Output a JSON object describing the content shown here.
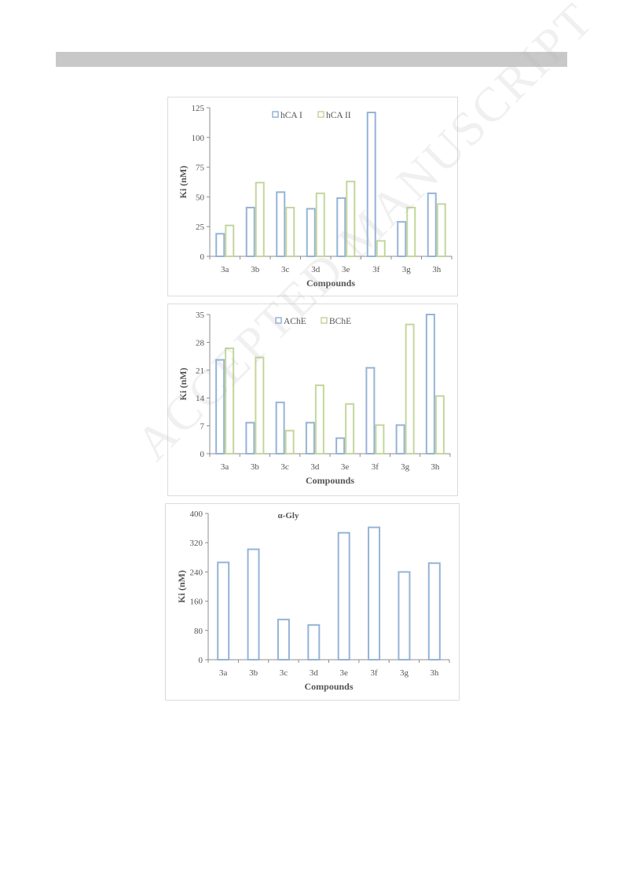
{
  "watermark": "ACCEPTED MANUSCRIPT",
  "colors": {
    "series1": "#95b3d7",
    "series2": "#c3d69b",
    "axis": "#8c8c8c",
    "text": "#555555"
  },
  "chart_data": [
    {
      "type": "bar",
      "categories": [
        "3a",
        "3b",
        "3c",
        "3d",
        "3e",
        "3f",
        "3g",
        "3h"
      ],
      "series": [
        {
          "name": "hCA I",
          "values": [
            19,
            41,
            54,
            40,
            49,
            121,
            29,
            53
          ]
        },
        {
          "name": "hCA II",
          "values": [
            26,
            62,
            41,
            53,
            63,
            13,
            41,
            44
          ]
        }
      ],
      "title": "",
      "xlabel": "Compounds",
      "ylabel": "Ki (nM)",
      "ylim": [
        0,
        125
      ],
      "yticks": [
        "0",
        "25",
        "50",
        "75",
        "100",
        "125"
      ],
      "legend": "top-center",
      "grid": false
    },
    {
      "type": "bar",
      "categories": [
        "3a",
        "3b",
        "3c",
        "3d",
        "3e",
        "3f",
        "3g",
        "3h"
      ],
      "series": [
        {
          "name": "AChE",
          "values": [
            23.6,
            7.8,
            12.9,
            7.8,
            3.9,
            21.6,
            7.2,
            35
          ]
        },
        {
          "name": "BChE",
          "values": [
            26.5,
            24.2,
            5.8,
            17.2,
            12.5,
            7.2,
            32.5,
            14.5
          ]
        }
      ],
      "title": "",
      "xlabel": "Compounds",
      "ylabel": "Ki (nM)",
      "ylim": [
        0,
        35
      ],
      "yticks": [
        "0",
        "7",
        "14",
        "21",
        "28",
        "35"
      ],
      "legend": "top-center",
      "grid": false
    },
    {
      "type": "bar",
      "categories": [
        "3a",
        "3b",
        "3c",
        "3d",
        "3e",
        "3f",
        "3g",
        "3h"
      ],
      "series": [
        {
          "name": "α-Gly",
          "values": [
            266,
            302,
            110,
            95,
            347,
            362,
            240,
            264
          ]
        }
      ],
      "title": "",
      "xlabel": "Compounds",
      "ylabel": "Ki (nM)",
      "ylim": [
        0,
        400
      ],
      "yticks": [
        "0",
        "80",
        "160",
        "240",
        "320",
        "400"
      ],
      "legend": "top-center",
      "grid": false
    }
  ]
}
